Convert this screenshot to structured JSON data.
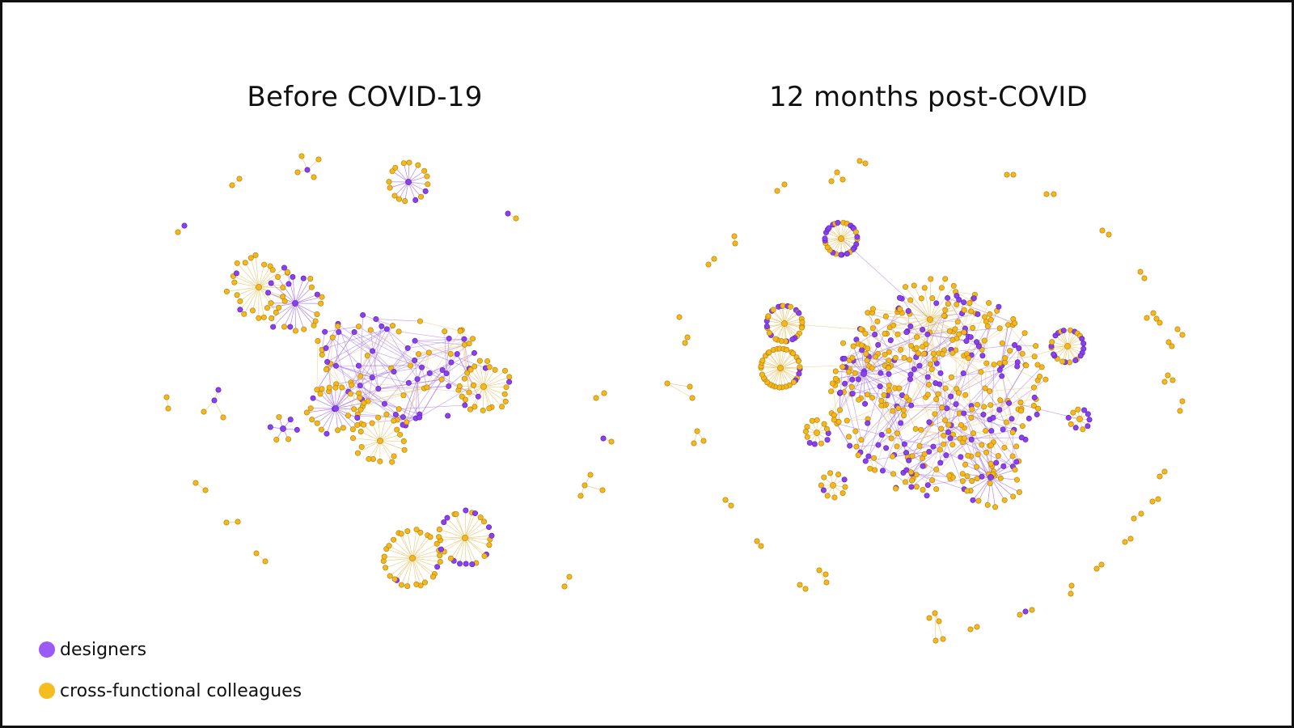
{
  "titles": {
    "left": "Before COVID-19",
    "right": "12 months post-COVID"
  },
  "legend": [
    {
      "label": "designers",
      "color": "#9b59f6"
    },
    {
      "label": "cross-functional colleagues",
      "color": "#f5bd1f"
    }
  ],
  "colors": {
    "designer_fill": "#8a3ff0",
    "designer_stroke": "#5a1fb0",
    "colleague_fill": "#f4b81c",
    "colleague_stroke": "#b07d00",
    "designer_edge": "#9d6ae8",
    "colleague_edge": "#e9c46a"
  }
}
